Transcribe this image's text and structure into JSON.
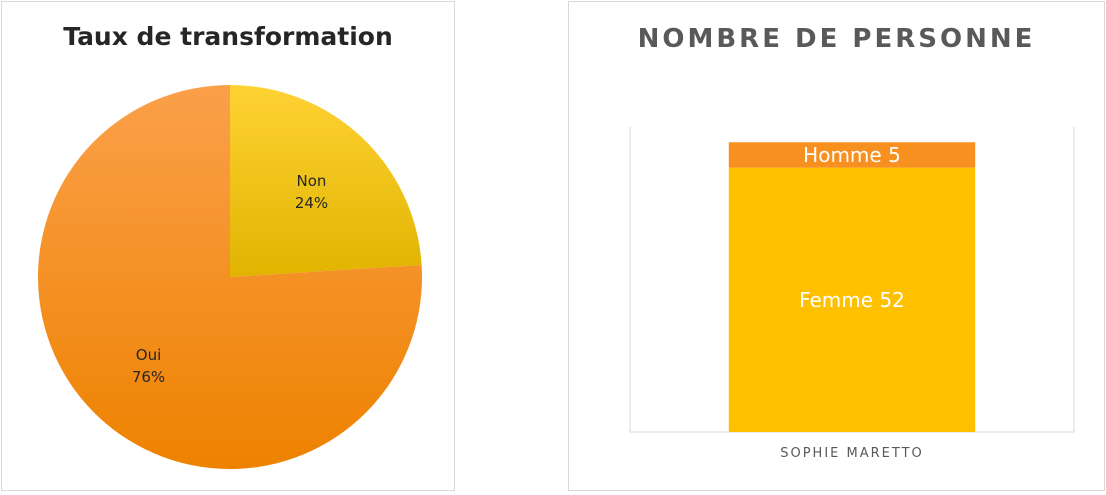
{
  "chart_data": [
    {
      "type": "pie",
      "title": "Taux de transformation",
      "slices": [
        {
          "label": "Non",
          "value": 24,
          "display": "24%",
          "color": "#FFC000"
        },
        {
          "label": "Oui",
          "value": 76,
          "display": "76%",
          "color": "#F7901E"
        }
      ]
    },
    {
      "type": "bar",
      "stacked": true,
      "title": "NOMBRE DE PERSONNE",
      "categories": [
        "SOPHIE MARETTO"
      ],
      "series": [
        {
          "name": "Femme",
          "values": [
            52
          ],
          "label": "Femme 52",
          "color": "#FFC000"
        },
        {
          "name": "Homme",
          "values": [
            5
          ],
          "label": "Homme 5",
          "color": "#F7901E"
        }
      ],
      "ylim": [
        0,
        60
      ],
      "grid": false
    }
  ]
}
